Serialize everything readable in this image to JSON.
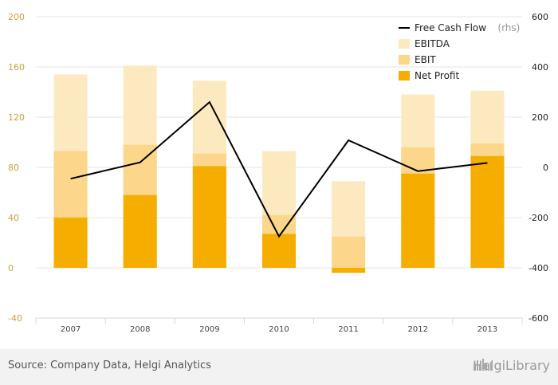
{
  "chart_data": {
    "type": "bar",
    "categories": [
      "2007",
      "2008",
      "2009",
      "2010",
      "2011",
      "2012",
      "2013"
    ],
    "series": [
      {
        "name": "Net Profit",
        "values": [
          40,
          58,
          81,
          27,
          -4,
          75,
          89
        ],
        "color": "#f5ad00",
        "axis": "left",
        "kind": "bar"
      },
      {
        "name": "EBIT",
        "values": [
          93,
          98,
          91,
          42,
          25,
          96,
          99
        ],
        "color": "#fcd68a",
        "axis": "left",
        "kind": "bar"
      },
      {
        "name": "EBITDA",
        "values": [
          154,
          161,
          149,
          93,
          69,
          138,
          141
        ],
        "color": "#fde9bf",
        "axis": "left",
        "kind": "bar"
      },
      {
        "name": "Free Cash Flow",
        "values": [
          -45,
          20,
          260,
          -275,
          108,
          -15,
          18
        ],
        "color": "#000000",
        "axis": "right",
        "kind": "line"
      }
    ],
    "left_axis": {
      "ticks": [
        "200",
        "160",
        "120",
        "80",
        "40",
        "0",
        "-40"
      ],
      "ylim": [
        -40,
        200
      ]
    },
    "right_axis": {
      "ticks": [
        "600",
        "400",
        "200",
        "0",
        "-200",
        "-400",
        "-600"
      ],
      "ylim": [
        -600,
        600
      ]
    },
    "legend": {
      "position": "top-right",
      "items": [
        {
          "label": "Free Cash Flow",
          "suffix": "(rhs)",
          "kind": "line",
          "color": "#000000"
        },
        {
          "label": "EBITDA",
          "kind": "box",
          "color": "#fde9bf"
        },
        {
          "label": "EBIT",
          "kind": "box",
          "color": "#fcd68a"
        },
        {
          "label": "Net Profit",
          "kind": "box",
          "color": "#f5ad00"
        }
      ]
    },
    "grid": true
  },
  "footer": {
    "source": "Source: Company Data, Helgi Analytics",
    "logo": "HelgiLibrary",
    "logo_icon": "skyline-icon"
  }
}
